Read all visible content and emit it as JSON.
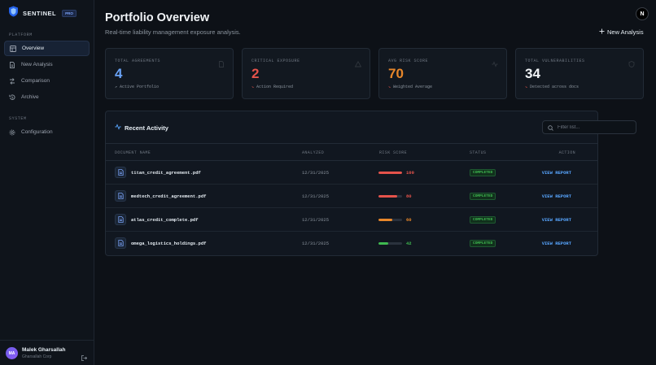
{
  "brand": {
    "name": "SENTINEL",
    "badge": "PRO"
  },
  "sidebar": {
    "section_platform": "PLATFORM",
    "section_system": "SYSTEM",
    "items": [
      {
        "label": "Overview",
        "icon": "grid-icon",
        "active": true
      },
      {
        "label": "New Analysis",
        "icon": "file-icon",
        "active": false
      },
      {
        "label": "Comparison",
        "icon": "compare-icon",
        "active": false
      },
      {
        "label": "Archive",
        "icon": "archive-icon",
        "active": false
      }
    ],
    "system_items": [
      {
        "label": "Configuration",
        "icon": "gear-icon"
      }
    ]
  },
  "user": {
    "initials": "MA",
    "name": "Malek Gharsallah",
    "org": "Gharsallah Corp"
  },
  "header": {
    "title": "Portfolio Overview",
    "subtitle": "Real-time liability management exposure analysis.",
    "new_analysis": "New Analysis",
    "corner_logo": "N"
  },
  "stats": [
    {
      "label": "TOTAL AGREEMENTS",
      "value": "4",
      "note": "Active Portfolio",
      "color": "#6aa3f7"
    },
    {
      "label": "CRITICAL EXPOSURE",
      "value": "2",
      "note": "Action Required",
      "color": "#e5534b"
    },
    {
      "label": "AVG RISK SCORE",
      "value": "70",
      "note": "Weighted Average",
      "color": "#e8872a"
    },
    {
      "label": "TOTAL VULNERABILITIES",
      "value": "34",
      "note": "Detected across docs",
      "color": "#f0f3f6"
    }
  ],
  "activity": {
    "title": "Recent Activity",
    "filter_placeholder": "Filter list...",
    "columns": {
      "name": "DOCUMENT NAME",
      "analyzed": "ANALYZED",
      "risk": "RISK SCORE",
      "status": "STATUS",
      "action": "ACTION"
    },
    "rows": [
      {
        "name": "titan_credit_agreement.pdf",
        "date": "12/31/2025",
        "score": 100,
        "score_color": "#e5534b",
        "status": "COMPLETED",
        "action": "VIEW REPORT"
      },
      {
        "name": "medtech_credit_agreement.pdf",
        "date": "12/31/2025",
        "score": 80,
        "score_color": "#e5534b",
        "status": "COMPLETED",
        "action": "VIEW REPORT"
      },
      {
        "name": "atlas_credit_complete.pdf",
        "date": "12/31/2025",
        "score": 60,
        "score_color": "#e8872a",
        "status": "COMPLETED",
        "action": "VIEW REPORT"
      },
      {
        "name": "omega_logistics_holdings.pdf",
        "date": "12/31/2025",
        "score": 42,
        "score_color": "#3fb950",
        "status": "COMPLETED",
        "action": "VIEW REPORT"
      }
    ]
  }
}
